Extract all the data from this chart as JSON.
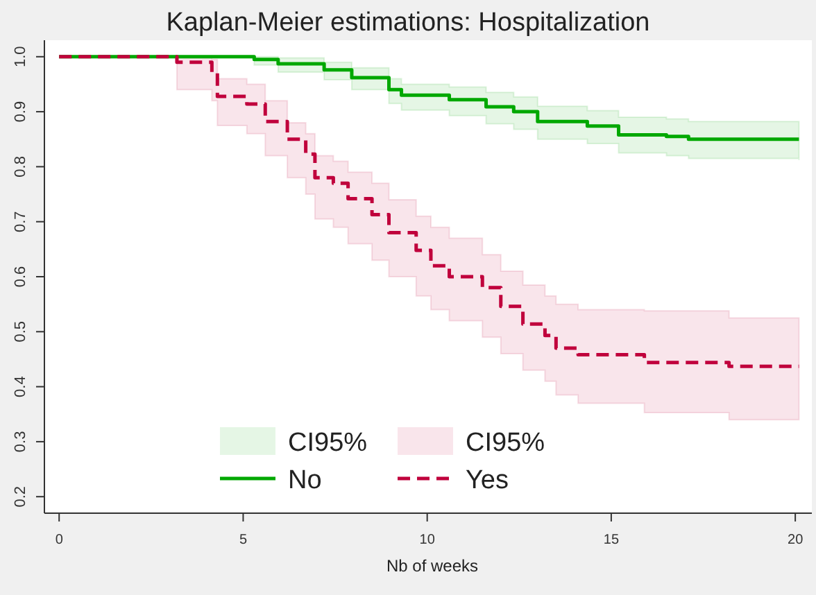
{
  "chart_data": {
    "type": "step",
    "title": "Kaplan-Meier estimations: Hospitalization",
    "xlabel": "Nb of weeks",
    "xlim": [
      -0.4,
      20.45
    ],
    "ylim": [
      0.17,
      1.03
    ],
    "xticks": [
      0,
      5,
      10,
      15,
      20
    ],
    "yticks": [
      0.2,
      0.3,
      0.4,
      0.5,
      0.6,
      0.7,
      0.8,
      0.9,
      {
        "value": 1,
        "label": "1.0"
      }
    ],
    "grid": false,
    "legend": "bottom",
    "marker": "none",
    "annotations": [
      "CI95%",
      "CI95%"
    ],
    "series": [
      {
        "name": "No",
        "color": "#00a800",
        "line_style": "solid",
        "x": [
          0,
          5.3,
          5.95,
          7.2,
          7.95,
          8.96,
          9.3,
          10.6,
          11.6,
          12.35,
          13.0,
          14.35,
          15.2,
          16.5,
          17.1,
          20.1
        ],
        "values": [
          1,
          0.995,
          0.987,
          0.976,
          0.962,
          0.94,
          0.93,
          0.922,
          0.909,
          0.9,
          0.882,
          0.874,
          0.858,
          0.855,
          0.85,
          0.85
        ],
        "lower": [
          1,
          0.985,
          0.972,
          0.958,
          0.94,
          0.915,
          0.903,
          0.893,
          0.878,
          0.868,
          0.85,
          0.842,
          0.825,
          0.82,
          0.815,
          0.812
        ],
        "upper": [
          1,
          1,
          0.998,
          0.99,
          0.98,
          0.96,
          0.95,
          0.945,
          0.935,
          0.927,
          0.91,
          0.902,
          0.89,
          0.887,
          0.882,
          0.879
        ]
      },
      {
        "name": "Yes",
        "color": "#c0003c",
        "line_style": "dashed",
        "x": [
          0,
          3.2,
          4.15,
          4.3,
          5.1,
          5.6,
          6.2,
          6.7,
          6.95,
          7.45,
          7.85,
          8.5,
          8.96,
          9.7,
          10.1,
          10.6,
          11.5,
          12.0,
          12.6,
          13.2,
          13.5,
          14.1,
          15.9,
          18.2,
          20.1
        ],
        "values": [
          1,
          0.99,
          0.97,
          0.928,
          0.914,
          0.882,
          0.85,
          0.823,
          0.78,
          0.77,
          0.742,
          0.713,
          0.68,
          0.648,
          0.62,
          0.6,
          0.58,
          0.546,
          0.514,
          0.493,
          0.47,
          0.458,
          0.444,
          0.437,
          0.437
        ],
        "lower": [
          1,
          0.94,
          0.92,
          0.875,
          0.86,
          0.82,
          0.78,
          0.75,
          0.705,
          0.69,
          0.66,
          0.63,
          0.6,
          0.565,
          0.54,
          0.52,
          0.49,
          0.46,
          0.43,
          0.41,
          0.385,
          0.37,
          0.353,
          0.34,
          0.34
        ],
        "upper": [
          1,
          1,
          0.995,
          0.96,
          0.95,
          0.92,
          0.88,
          0.86,
          0.82,
          0.81,
          0.79,
          0.77,
          0.74,
          0.71,
          0.69,
          0.67,
          0.64,
          0.61,
          0.585,
          0.565,
          0.55,
          0.54,
          0.538,
          0.525,
          0.525
        ]
      }
    ]
  }
}
